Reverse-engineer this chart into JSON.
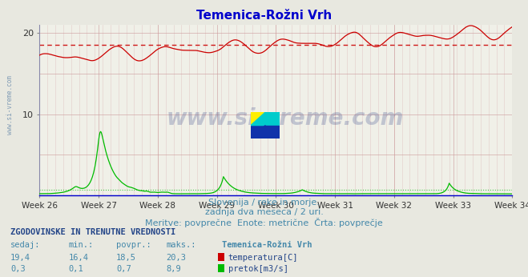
{
  "title": "Temenica-Rožni Vrh",
  "title_color": "#0000cc",
  "bg_color": "#e8e8e0",
  "plot_bg_color": "#f0f0e8",
  "weeks": [
    "Week 26",
    "Week 27",
    "Week 28",
    "Week 29",
    "Week 30",
    "Week 31",
    "Week 32",
    "Week 33",
    "Week 34"
  ],
  "n_weeks": 9,
  "ylim": [
    0,
    21
  ],
  "yticks": [
    10,
    20
  ],
  "temp_avg": 18.5,
  "temp_min": 16.4,
  "temp_max": 20.3,
  "temp_current": 19.4,
  "flow_avg": 0.7,
  "flow_min": 0.1,
  "flow_max": 8.9,
  "flow_current": 0.3,
  "temp_color": "#cc0000",
  "flow_color": "#00bb00",
  "avg_line_color": "#cc0000",
  "grid_color": "#cc9999",
  "grid_minor_color": "#ddbbbb",
  "axis_color": "#0000cc",
  "subtitle1": "Slovenija / reke in morje.",
  "subtitle2": "zadnja dva meseca / 2 uri.",
  "subtitle3": "Meritve: povprečne  Enote: metrične  Črta: povprečje",
  "footer_header": "ZGODOVINSKE IN TRENUTNE VREDNOSTI",
  "footer_col1": "sedaj:",
  "footer_col2": "min.:",
  "footer_col3": "povpr.:",
  "footer_col4": "maks.:",
  "footer_station": "Temenica-Rožni Vrh",
  "footer_temp_label": "temperatura[C]",
  "footer_flow_label": "pretok[m3/s]",
  "n_points": 744,
  "watermark": "www.si-vreme.com",
  "watermark_color": "#334488",
  "side_label": "www.si-vreme.com",
  "side_label_color": "#6688aa"
}
